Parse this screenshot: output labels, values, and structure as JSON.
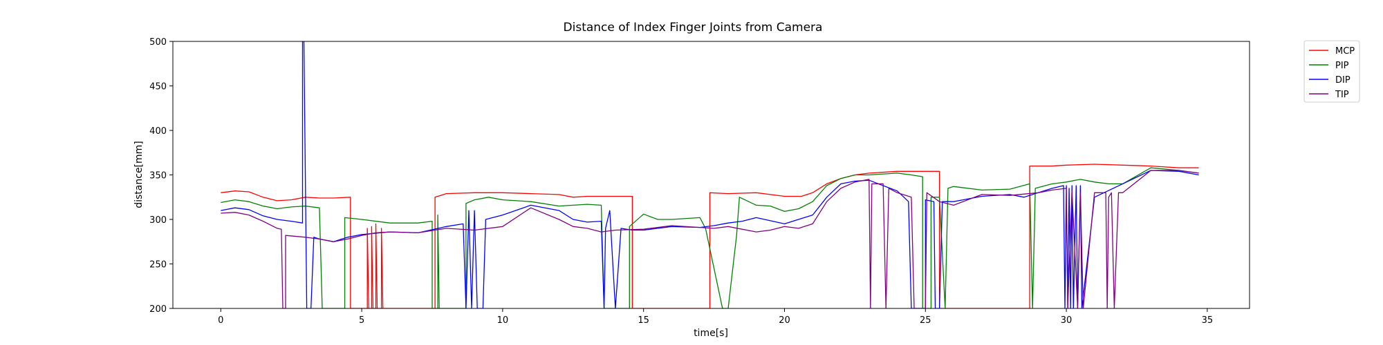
{
  "chart_data": {
    "type": "line",
    "title": "Distance of Index Finger Joints from Camera",
    "xlabel": "time[s]",
    "ylabel": "distance[mm]",
    "xlim": [
      -1.7,
      36.5
    ],
    "ylim": [
      200,
      500
    ],
    "xticks": [
      0,
      5,
      10,
      15,
      20,
      25,
      30,
      35
    ],
    "yticks": [
      200,
      250,
      300,
      350,
      400,
      450,
      500
    ],
    "legend_position": "outside-top-right",
    "grid": false,
    "series": [
      {
        "name": "MCP",
        "color": "#ff0000",
        "points": [
          [
            0,
            330
          ],
          [
            0.5,
            332
          ],
          [
            1,
            331
          ],
          [
            1.5,
            325
          ],
          [
            2,
            321
          ],
          [
            2.5,
            322
          ],
          [
            3,
            325
          ],
          [
            3.5,
            324
          ],
          [
            4,
            324
          ],
          [
            4.6,
            325
          ],
          [
            4.6,
            200
          ],
          [
            4.62,
            200
          ],
          [
            5.2,
            200
          ],
          [
            5.2,
            290
          ],
          [
            5.25,
            200
          ],
          [
            5.35,
            200
          ],
          [
            5.35,
            292
          ],
          [
            5.4,
            200
          ],
          [
            5.5,
            200
          ],
          [
            5.5,
            295
          ],
          [
            5.55,
            200
          ],
          [
            5.7,
            200
          ],
          [
            5.7,
            290
          ],
          [
            5.75,
            200
          ],
          [
            7.6,
            200
          ],
          [
            7.6,
            325
          ],
          [
            8,
            329
          ],
          [
            9,
            330
          ],
          [
            10,
            330
          ],
          [
            11,
            329
          ],
          [
            12,
            328
          ],
          [
            12.5,
            325
          ],
          [
            13,
            326
          ],
          [
            14,
            326
          ],
          [
            14.6,
            326
          ],
          [
            14.6,
            200
          ],
          [
            17.35,
            200
          ],
          [
            17.35,
            330
          ],
          [
            18,
            329
          ],
          [
            19,
            330
          ],
          [
            20,
            326
          ],
          [
            20.6,
            326
          ],
          [
            21,
            330
          ],
          [
            21.5,
            340
          ],
          [
            22,
            346
          ],
          [
            22.5,
            350
          ],
          [
            23,
            352
          ],
          [
            24,
            354
          ],
          [
            25,
            354
          ],
          [
            25.5,
            354
          ],
          [
            25.5,
            200
          ],
          [
            28.7,
            200
          ],
          [
            28.7,
            360
          ],
          [
            29.5,
            360
          ],
          [
            30,
            361
          ],
          [
            31,
            362
          ],
          [
            32,
            361
          ],
          [
            33,
            360
          ],
          [
            34,
            358
          ],
          [
            34.7,
            358
          ]
        ]
      },
      {
        "name": "PIP",
        "color": "#008000",
        "points": [
          [
            0,
            319
          ],
          [
            0.5,
            322
          ],
          [
            1,
            320
          ],
          [
            1.5,
            315
          ],
          [
            2,
            312
          ],
          [
            2.5,
            314
          ],
          [
            3,
            315
          ],
          [
            3.5,
            313
          ],
          [
            3.6,
            200
          ],
          [
            4.4,
            200
          ],
          [
            4.4,
            302
          ],
          [
            5,
            300
          ],
          [
            6,
            296
          ],
          [
            7,
            296
          ],
          [
            7.5,
            298
          ],
          [
            7.5,
            200
          ],
          [
            7.7,
            200
          ],
          [
            7.7,
            305
          ],
          [
            7.75,
            200
          ],
          [
            8.7,
            200
          ],
          [
            8.7,
            318
          ],
          [
            9,
            322
          ],
          [
            9.5,
            325
          ],
          [
            10,
            322
          ],
          [
            11,
            320
          ],
          [
            12,
            315
          ],
          [
            13,
            317
          ],
          [
            13.5,
            316
          ],
          [
            13.6,
            200
          ],
          [
            14.5,
            200
          ],
          [
            14.5,
            292
          ],
          [
            15,
            306
          ],
          [
            15.5,
            300
          ],
          [
            16,
            300
          ],
          [
            17,
            302
          ],
          [
            17.2,
            290
          ],
          [
            17.8,
            200
          ],
          [
            18,
            200
          ],
          [
            18.3,
            282
          ],
          [
            18.4,
            325
          ],
          [
            19,
            316
          ],
          [
            19.5,
            315
          ],
          [
            20,
            309
          ],
          [
            20.5,
            312
          ],
          [
            21,
            320
          ],
          [
            21.5,
            338
          ],
          [
            22,
            346
          ],
          [
            22.5,
            350
          ],
          [
            23,
            350
          ],
          [
            24,
            352
          ],
          [
            24.5,
            350
          ],
          [
            24.9,
            348
          ],
          [
            24.9,
            200
          ],
          [
            25.2,
            200
          ],
          [
            25.2,
            325
          ],
          [
            25.5,
            325
          ],
          [
            25.7,
            200
          ],
          [
            25.8,
            335
          ],
          [
            26,
            337
          ],
          [
            27,
            333
          ],
          [
            28,
            334
          ],
          [
            28.7,
            340
          ],
          [
            28.8,
            200
          ],
          [
            28.9,
            335
          ],
          [
            29.5,
            340
          ],
          [
            30,
            342
          ],
          [
            30.5,
            345
          ],
          [
            31,
            342
          ],
          [
            31.5,
            340
          ],
          [
            32,
            340
          ],
          [
            33,
            358
          ],
          [
            34,
            355
          ],
          [
            34.7,
            352
          ]
        ]
      },
      {
        "name": "DIP",
        "color": "#0000ff",
        "points": [
          [
            0,
            310
          ],
          [
            0.5,
            313
          ],
          [
            1,
            311
          ],
          [
            1.5,
            304
          ],
          [
            2,
            300
          ],
          [
            2.5,
            298
          ],
          [
            2.9,
            296
          ],
          [
            2.9,
            500
          ],
          [
            2.95,
            500
          ],
          [
            3.05,
            200
          ],
          [
            3.2,
            200
          ],
          [
            3.3,
            280
          ],
          [
            3.5,
            278
          ],
          [
            4,
            275
          ],
          [
            4.5,
            280
          ],
          [
            5,
            283
          ],
          [
            6,
            286
          ],
          [
            7,
            285
          ],
          [
            8,
            292
          ],
          [
            8.6,
            295
          ],
          [
            8.7,
            200
          ],
          [
            8.8,
            310
          ],
          [
            8.9,
            200
          ],
          [
            9,
            310
          ],
          [
            9.1,
            200
          ],
          [
            9.3,
            200
          ],
          [
            9.4,
            300
          ],
          [
            10,
            305
          ],
          [
            11,
            316
          ],
          [
            12,
            310
          ],
          [
            12.5,
            300
          ],
          [
            13,
            297
          ],
          [
            13.5,
            298
          ],
          [
            13.6,
            200
          ],
          [
            13.65,
            290
          ],
          [
            13.8,
            310
          ],
          [
            14,
            200
          ],
          [
            14.2,
            290
          ],
          [
            14.6,
            288
          ],
          [
            15,
            288
          ],
          [
            16,
            292
          ],
          [
            17,
            291
          ],
          [
            17.5,
            293
          ],
          [
            18,
            296
          ],
          [
            18.5,
            298
          ],
          [
            19,
            302
          ],
          [
            20,
            295
          ],
          [
            21,
            305
          ],
          [
            21.5,
            325
          ],
          [
            22,
            340
          ],
          [
            22.5,
            343
          ],
          [
            23,
            344
          ],
          [
            23.5,
            338
          ],
          [
            24,
            332
          ],
          [
            24.4,
            320
          ],
          [
            24.5,
            200
          ],
          [
            25,
            200
          ],
          [
            25,
            322
          ],
          [
            25.3,
            320
          ],
          [
            25.35,
            200
          ],
          [
            25.5,
            200
          ],
          [
            25.6,
            320
          ],
          [
            26,
            320
          ],
          [
            27,
            326
          ],
          [
            28,
            328
          ],
          [
            28.5,
            325
          ],
          [
            29,
            330
          ],
          [
            29.5,
            335
          ],
          [
            29.9,
            338
          ],
          [
            29.95,
            200
          ],
          [
            30,
            338
          ],
          [
            30.05,
            200
          ],
          [
            30.1,
            335
          ],
          [
            30.15,
            200
          ],
          [
            30.2,
            338
          ],
          [
            30.25,
            200
          ],
          [
            30.35,
            338
          ],
          [
            30.4,
            200
          ],
          [
            30.5,
            338
          ],
          [
            30.55,
            200
          ],
          [
            31,
            325
          ],
          [
            32,
            340
          ],
          [
            33,
            355
          ],
          [
            34,
            354
          ],
          [
            34.7,
            350
          ]
        ]
      },
      {
        "name": "TIP",
        "color": "#800080",
        "points": [
          [
            0,
            307
          ],
          [
            0.5,
            308
          ],
          [
            1,
            305
          ],
          [
            1.5,
            298
          ],
          [
            2,
            290
          ],
          [
            2.15,
            289
          ],
          [
            2.2,
            200
          ],
          [
            2.3,
            200
          ],
          [
            2.3,
            282
          ],
          [
            3,
            280
          ],
          [
            3.5,
            278
          ],
          [
            4,
            275
          ],
          [
            4.5,
            278
          ],
          [
            5,
            282
          ],
          [
            5.5,
            285
          ],
          [
            6,
            286
          ],
          [
            7,
            285
          ],
          [
            8,
            290
          ],
          [
            9,
            288
          ],
          [
            10,
            292
          ],
          [
            11,
            313
          ],
          [
            12,
            300
          ],
          [
            12.5,
            292
          ],
          [
            13,
            290
          ],
          [
            13.5,
            286
          ],
          [
            14,
            288
          ],
          [
            15,
            289
          ],
          [
            16,
            293
          ],
          [
            17,
            291
          ],
          [
            17.5,
            290
          ],
          [
            18,
            292
          ],
          [
            19,
            286
          ],
          [
            19.5,
            288
          ],
          [
            20,
            292
          ],
          [
            20.5,
            290
          ],
          [
            21,
            295
          ],
          [
            21.5,
            320
          ],
          [
            22,
            335
          ],
          [
            22.5,
            342
          ],
          [
            23,
            345
          ],
          [
            23.05,
            200
          ],
          [
            23.1,
            340
          ],
          [
            23.5,
            340
          ],
          [
            23.6,
            200
          ],
          [
            23.7,
            335
          ],
          [
            24,
            330
          ],
          [
            24.5,
            325
          ],
          [
            24.6,
            200
          ],
          [
            25,
            200
          ],
          [
            25.05,
            330
          ],
          [
            25.5,
            320
          ],
          [
            26,
            316
          ],
          [
            27,
            328
          ],
          [
            28,
            327
          ],
          [
            29,
            330
          ],
          [
            29.5,
            333
          ],
          [
            30,
            335
          ],
          [
            30.05,
            200
          ],
          [
            30.2,
            332
          ],
          [
            30.4,
            200
          ],
          [
            30.5,
            330
          ],
          [
            30.6,
            200
          ],
          [
            31,
            330
          ],
          [
            31.4,
            330
          ],
          [
            31.45,
            200
          ],
          [
            31.5,
            325
          ],
          [
            31.6,
            330
          ],
          [
            31.7,
            200
          ],
          [
            31.85,
            330
          ],
          [
            32,
            330
          ],
          [
            33,
            355
          ],
          [
            34,
            355
          ],
          [
            34.7,
            352
          ]
        ]
      }
    ]
  }
}
